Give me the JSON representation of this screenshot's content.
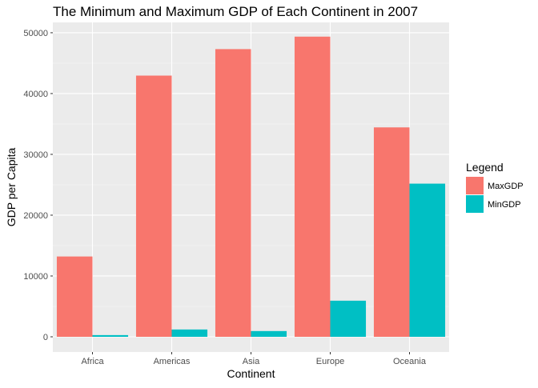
{
  "chart_data": {
    "type": "bar",
    "title": "The Minimum and Maximum GDP of Each Continent in 2007",
    "xlabel": "Continent",
    "ylabel": "GDP per Capita",
    "categories": [
      "Africa",
      "Americas",
      "Asia",
      "Europe",
      "Oceania"
    ],
    "series": [
      {
        "name": "MaxGDP",
        "color": "#F8766D",
        "values": [
          13206,
          42952,
          47307,
          49357,
          34435
        ]
      },
      {
        "name": "MinGDP",
        "color": "#00BFC4",
        "values": [
          278,
          1202,
          944,
          5937,
          25185
        ]
      }
    ],
    "ylim": [
      -2500,
      51700
    ],
    "yticks": [
      0,
      10000,
      20000,
      30000,
      40000,
      50000
    ],
    "ytick_labels": [
      "0",
      "10000",
      "20000",
      "30000",
      "40000",
      "50000"
    ],
    "legend": {
      "title": "Legend",
      "position": "right"
    },
    "grid": true,
    "panel_color": "#EBEBEB"
  }
}
